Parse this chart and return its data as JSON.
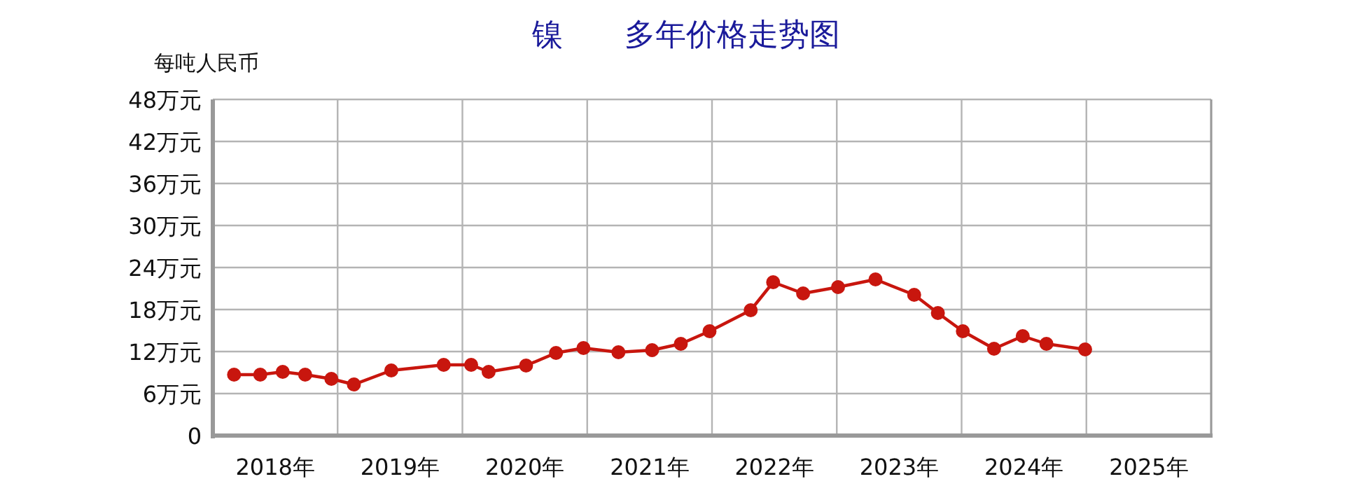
{
  "chart_data": {
    "type": "line",
    "title": "镍　　多年价格走势图",
    "ylabel": "每吨人民币",
    "xlim": [
      2018,
      2026
    ],
    "xticks": [
      {
        "value": 2018,
        "label": null
      },
      {
        "value": 2018.5,
        "label": "2018年"
      },
      {
        "value": 2019,
        "label": null
      },
      {
        "value": 2019.5,
        "label": "2019年"
      },
      {
        "value": 2020,
        "label": null
      },
      {
        "value": 2020.5,
        "label": "2020年"
      },
      {
        "value": 2021,
        "label": null
      },
      {
        "value": 2021.5,
        "label": "2021年"
      },
      {
        "value": 2022,
        "label": null
      },
      {
        "value": 2022.5,
        "label": "2022年"
      },
      {
        "value": 2023,
        "label": null
      },
      {
        "value": 2023.5,
        "label": "2023年"
      },
      {
        "value": 2024,
        "label": null
      },
      {
        "value": 2024.5,
        "label": "2024年"
      },
      {
        "value": 2025,
        "label": null
      },
      {
        "value": 2025.5,
        "label": "2025年"
      },
      {
        "value": 2026,
        "label": null
      }
    ],
    "ylim": [
      0,
      48
    ],
    "yticks": [
      {
        "value": 0,
        "label": "0"
      },
      {
        "value": 6,
        "label": "6万元"
      },
      {
        "value": 12,
        "label": "12万元"
      },
      {
        "value": 18,
        "label": "18万元"
      },
      {
        "value": 24,
        "label": "24万元"
      },
      {
        "value": 30,
        "label": "30万元"
      },
      {
        "value": 36,
        "label": "36万元"
      },
      {
        "value": 42,
        "label": "42万元"
      },
      {
        "value": 48,
        "label": "48万元"
      }
    ],
    "grid": true,
    "marker": "circle",
    "line_style": "solid",
    "series": [
      {
        "color": "#c8160e",
        "x": [
          2018.17,
          2018.38,
          2018.56,
          2018.74,
          2018.95,
          2019.13,
          2019.43,
          2019.85,
          2020.07,
          2020.21,
          2020.51,
          2020.75,
          2020.97,
          2021.25,
          2021.52,
          2021.75,
          2021.98,
          2022.31,
          2022.49,
          2022.73,
          2023.01,
          2023.31,
          2023.62,
          2023.81,
          2024.01,
          2024.26,
          2024.49,
          2024.68,
          2024.99
        ],
        "values": [
          8.7,
          8.7,
          9.1,
          8.7,
          8.1,
          7.3,
          9.3,
          10.1,
          10.1,
          9.1,
          10.0,
          11.8,
          12.5,
          11.9,
          12.2,
          13.1,
          14.9,
          17.9,
          21.9,
          20.3,
          21.2,
          22.3,
          20.1,
          17.5,
          14.9,
          12.4,
          14.2,
          13.1,
          12.3
        ]
      }
    ]
  }
}
